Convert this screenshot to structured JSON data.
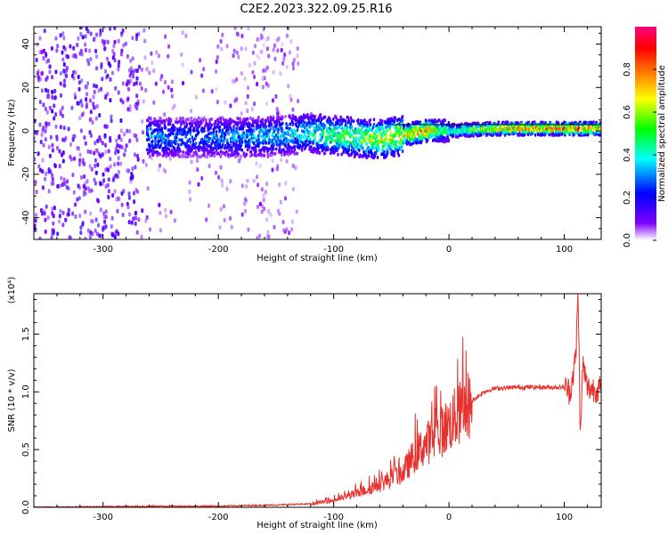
{
  "title": "C2E2.2023.322.09.25.R16",
  "colors": {
    "snr_line": "#e8302c",
    "zero_line": "#000000",
    "spectrogram_palette": [
      "#ffffff",
      "#8000ff",
      "#0000ff",
      "#00ffff",
      "#00ff00",
      "#ffff00",
      "#ff8000",
      "#ff0000",
      "#ff0080"
    ]
  },
  "chart_data": [
    {
      "type": "heatmap",
      "xlabel": "Height of straight line (km)",
      "ylabel": "Frequency (Hz)",
      "xlim": [
        -360,
        132
      ],
      "ylim": [
        -50,
        48
      ],
      "xticks": [
        -300,
        -200,
        -100,
        0,
        100
      ],
      "yticks": [
        -40,
        -20,
        0,
        20,
        40
      ],
      "colorbar": {
        "label": "Normalized spectral amplitude",
        "range": [
          0.0,
          1.0
        ],
        "ticks": [
          "0.0",
          "0.2",
          "0.4",
          "0.6",
          "0.8"
        ]
      },
      "noise_region_x": [
        -360,
        -130
      ],
      "track": {
        "x": [
          -260,
          -220,
          -180,
          -140,
          -120,
          -100,
          -80,
          -60,
          -40,
          -20,
          0,
          40,
          80,
          110,
          132
        ],
        "freq_hz": [
          -3,
          -3,
          -3,
          -2,
          -1,
          -2,
          -3,
          -4,
          -2,
          0,
          0,
          1,
          1,
          1,
          1
        ],
        "amplitude": [
          0.35,
          0.3,
          0.35,
          0.4,
          0.45,
          0.55,
          0.6,
          0.7,
          0.75,
          0.85,
          0.45,
          0.8,
          0.85,
          0.9,
          0.85
        ]
      }
    },
    {
      "type": "line",
      "xlabel": "Height of straight line (km)",
      "ylabel": "SNR (10 * v/v)",
      "yunit": "(x10⁴)",
      "xlim": [
        -360,
        132
      ],
      "ylim": [
        0,
        1.85
      ],
      "xticks": [
        -300,
        -200,
        -100,
        0,
        100
      ],
      "yticks": [
        "0.0",
        "0.5",
        "1.0",
        "1.5"
      ],
      "series": [
        {
          "x": [
            -360,
            -300,
            -250,
            -200,
            -150,
            -120,
            -100,
            -80,
            -60,
            -40,
            -30,
            -20,
            -10,
            0,
            10,
            20,
            30,
            40,
            60,
            80,
            100,
            105,
            110,
            112,
            114,
            116,
            120,
            132
          ],
          "values": [
            0.0,
            0.005,
            0.01,
            0.01,
            0.02,
            0.03,
            0.06,
            0.12,
            0.2,
            0.3,
            0.45,
            0.55,
            0.62,
            0.72,
            0.82,
            0.92,
            1.0,
            1.03,
            1.04,
            1.04,
            1.04,
            1.0,
            1.3,
            1.88,
            0.55,
            1.25,
            1.03,
            1.02
          ]
        }
      ]
    }
  ]
}
